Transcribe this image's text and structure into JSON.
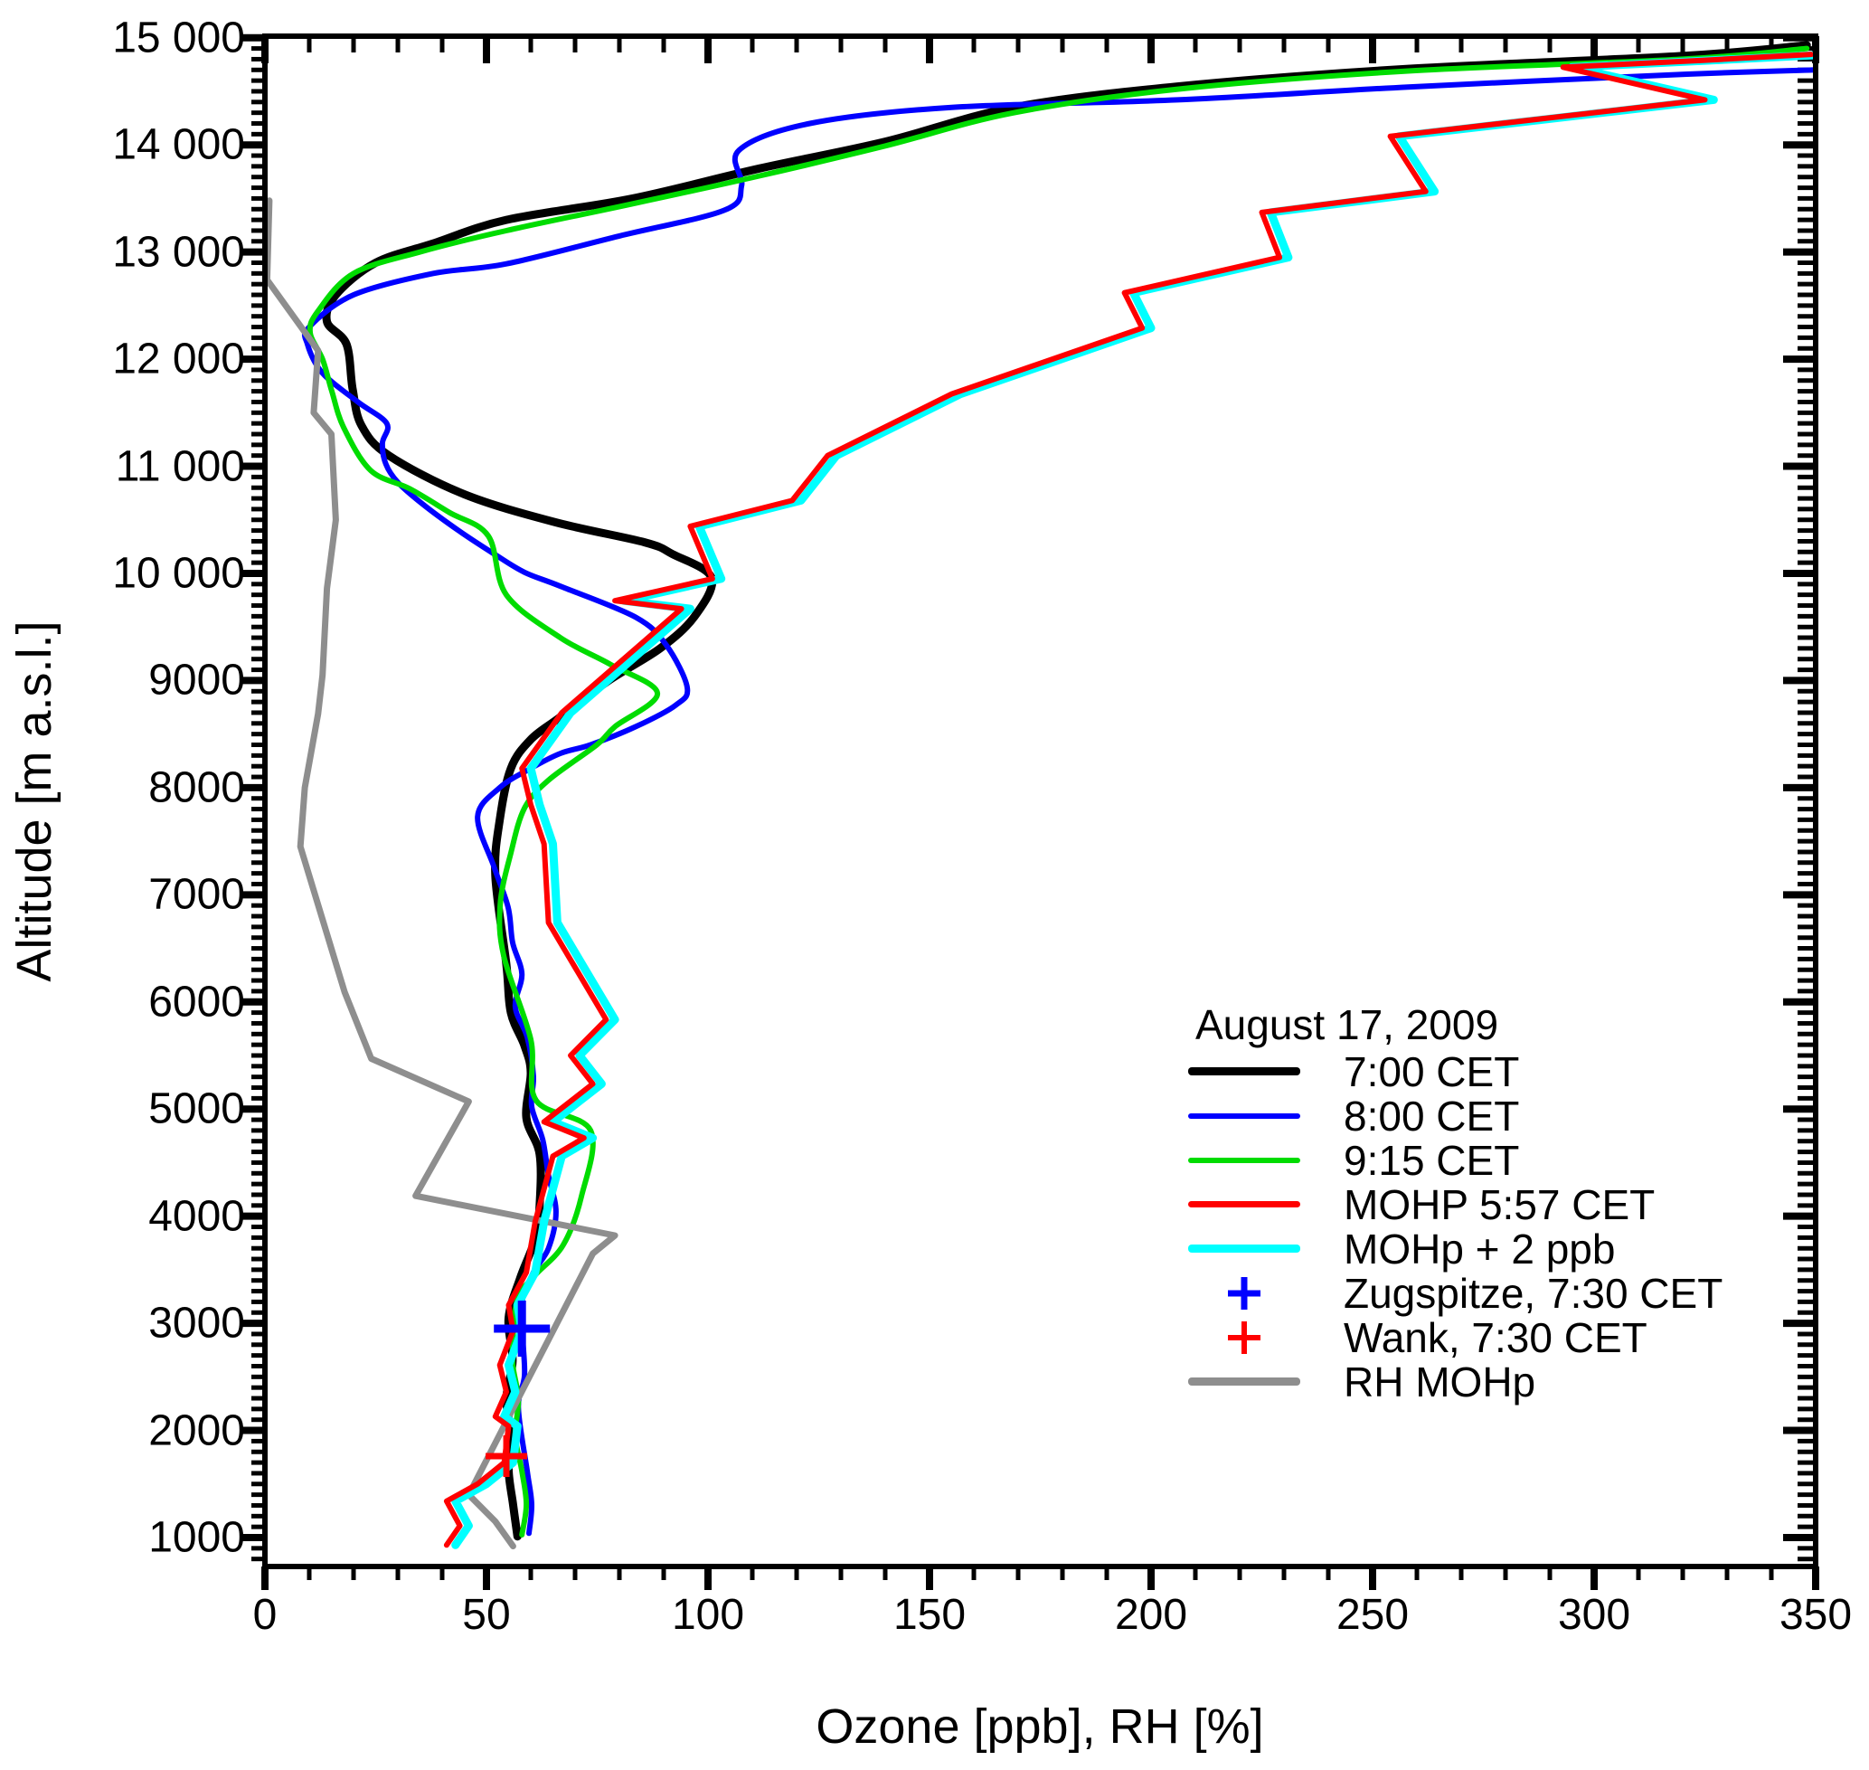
{
  "page": {
    "background": "#ffffff"
  },
  "axes": {
    "x_title": "Ozone [ppb], RH [%]",
    "y_title": "Altitude [m a.s.l.]",
    "x_ticks": [
      {
        "value": 0,
        "label": "0"
      },
      {
        "value": 50,
        "label": "50"
      },
      {
        "value": 100,
        "label": "100"
      },
      {
        "value": 150,
        "label": "150"
      },
      {
        "value": 200,
        "label": "200"
      },
      {
        "value": 250,
        "label": "250"
      },
      {
        "value": 300,
        "label": "300"
      },
      {
        "value": 350,
        "label": "350"
      }
    ],
    "y_ticks": [
      {
        "value": 1000,
        "label": "1000"
      },
      {
        "value": 2000,
        "label": "2000"
      },
      {
        "value": 3000,
        "label": "3000"
      },
      {
        "value": 4000,
        "label": "4000"
      },
      {
        "value": 5000,
        "label": "5000"
      },
      {
        "value": 6000,
        "label": "6000"
      },
      {
        "value": 7000,
        "label": "7000"
      },
      {
        "value": 8000,
        "label": "8000"
      },
      {
        "value": 9000,
        "label": "9000"
      },
      {
        "value": 10000,
        "label": "10 000"
      },
      {
        "value": 11000,
        "label": "11 000"
      },
      {
        "value": 12000,
        "label": "12 000"
      },
      {
        "value": 13000,
        "label": "13 000"
      },
      {
        "value": 14000,
        "label": "14 000"
      },
      {
        "value": 15000,
        "label": "15 000"
      }
    ]
  },
  "legend": {
    "title": "August 17, 2009",
    "items": [
      {
        "label": "7:00 CET",
        "type": "line",
        "color": "#000000",
        "thickness": 9
      },
      {
        "label": "8:00 CET",
        "type": "line",
        "color": "#0000ff",
        "thickness": 6
      },
      {
        "label": "9:15 CET",
        "type": "line",
        "color": "#00dc00",
        "thickness": 6
      },
      {
        "label": "MOHP 5:57 CET",
        "type": "line",
        "color": "#ff0000",
        "thickness": 7
      },
      {
        "label": "MOHp + 2 ppb",
        "type": "line",
        "color": "#00ffff",
        "thickness": 9
      },
      {
        "label": "Zugspitze, 7:30 CET",
        "type": "plus",
        "color": "#0000ff",
        "thickness": 7
      },
      {
        "label": "Wank, 7:30 CET",
        "type": "plus",
        "color": "#ff0000",
        "thickness": 6
      },
      {
        "label": "RH MOHp",
        "type": "line",
        "color": "#8e8e8e",
        "thickness": 9
      }
    ]
  },
  "chart_data": {
    "type": "line",
    "title": "August 17, 2009",
    "xlabel": "Ozone [ppb], RH [%]",
    "ylabel": "Altitude [m a.s.l.]",
    "xlim": [
      0,
      350
    ],
    "ylim": [
      730,
      15000
    ],
    "x_major_step": 50,
    "x_minor_step": 10,
    "y_major_step": 1000,
    "y_minor_step": 100,
    "grid": false,
    "legend_position": "inside-lower-right",
    "series": [
      {
        "name": "sonde-0700",
        "label": "7:00 CET",
        "color": "#000000",
        "width": 9,
        "smooth": true,
        "points": [
          [
            57,
            1010
          ],
          [
            56,
            1310
          ],
          [
            55,
            1630
          ],
          [
            55.5,
            1960
          ],
          [
            54.5,
            2300
          ],
          [
            55.9,
            2650
          ],
          [
            55,
            3050
          ],
          [
            57.6,
            3420
          ],
          [
            61,
            3790
          ],
          [
            62,
            4100
          ],
          [
            62,
            4580
          ],
          [
            59,
            4920
          ],
          [
            60,
            5340
          ],
          [
            58.6,
            5590
          ],
          [
            55.5,
            5900
          ],
          [
            54.5,
            6350
          ],
          [
            52,
            7180
          ],
          [
            53,
            7700
          ],
          [
            55.5,
            8180
          ],
          [
            60,
            8450
          ],
          [
            66.7,
            8660
          ],
          [
            77.6,
            9000
          ],
          [
            89.2,
            9300
          ],
          [
            97,
            9600
          ],
          [
            100.8,
            9960
          ],
          [
            92,
            10180
          ],
          [
            85.7,
            10290
          ],
          [
            65.3,
            10480
          ],
          [
            44.9,
            10740
          ],
          [
            28,
            11100
          ],
          [
            21.8,
            11380
          ],
          [
            19.8,
            11720
          ],
          [
            18.4,
            12140
          ],
          [
            14,
            12350
          ],
          [
            16,
            12600
          ],
          [
            25,
            12900
          ],
          [
            38,
            13080
          ],
          [
            54.5,
            13300
          ],
          [
            83,
            13500
          ],
          [
            111.6,
            13780
          ],
          [
            140,
            14030
          ],
          [
            169,
            14350
          ],
          [
            206,
            14545
          ],
          [
            258,
            14710
          ],
          [
            320,
            14830
          ],
          [
            348,
            14930
          ]
        ]
      },
      {
        "name": "sonde-0800",
        "label": "8:00 CET",
        "color": "#0000ff",
        "width": 6,
        "smooth": true,
        "points": [
          [
            59.6,
            1040
          ],
          [
            60.2,
            1310
          ],
          [
            59.2,
            1620
          ],
          [
            57.2,
            2210
          ],
          [
            58.6,
            2520
          ],
          [
            58,
            2950
          ],
          [
            58,
            3200
          ],
          [
            60.6,
            3475
          ],
          [
            64,
            3700
          ],
          [
            65.7,
            4040
          ],
          [
            64,
            4380
          ],
          [
            62.7,
            4715
          ],
          [
            60.2,
            5025
          ],
          [
            60.6,
            5310
          ],
          [
            59.2,
            5670
          ],
          [
            56.5,
            5955
          ],
          [
            58,
            6260
          ],
          [
            55.9,
            6555
          ],
          [
            54.9,
            6880
          ],
          [
            51.8,
            7250
          ],
          [
            48,
            7730
          ],
          [
            53,
            8000
          ],
          [
            60,
            8180
          ],
          [
            66.7,
            8320
          ],
          [
            73.5,
            8400
          ],
          [
            83.7,
            8570
          ],
          [
            92.7,
            8770
          ],
          [
            95.3,
            8935
          ],
          [
            90.6,
            9330
          ],
          [
            83.7,
            9590
          ],
          [
            66.7,
            9880
          ],
          [
            58.6,
            10010
          ],
          [
            51.8,
            10180
          ],
          [
            43.7,
            10400
          ],
          [
            35.5,
            10650
          ],
          [
            30,
            10850
          ],
          [
            27.3,
            11020
          ],
          [
            26.5,
            11215
          ],
          [
            27.5,
            11400
          ],
          [
            21,
            11600
          ],
          [
            13,
            11870
          ],
          [
            9.6,
            12140
          ],
          [
            10,
            12300
          ],
          [
            20,
            12600
          ],
          [
            38,
            12800
          ],
          [
            54.5,
            12890
          ],
          [
            80,
            13150
          ],
          [
            103.7,
            13390
          ],
          [
            107.6,
            13620
          ],
          [
            107,
            13950
          ],
          [
            123,
            14200
          ],
          [
            155,
            14350
          ],
          [
            206,
            14420
          ],
          [
            258,
            14540
          ],
          [
            321,
            14660
          ],
          [
            350,
            14700
          ]
        ]
      },
      {
        "name": "sonde-0915",
        "label": "9:15 CET",
        "color": "#00dc00",
        "width": 6,
        "smooth": true,
        "points": [
          [
            58,
            1025
          ],
          [
            59,
            1310
          ],
          [
            58,
            1620
          ],
          [
            56.5,
            1950
          ],
          [
            57.2,
            2290
          ],
          [
            55.9,
            2630
          ],
          [
            56.1,
            2940
          ],
          [
            57.2,
            3250
          ],
          [
            61,
            3450
          ],
          [
            67.3,
            3730
          ],
          [
            71.4,
            4180
          ],
          [
            73.5,
            4800
          ],
          [
            61.2,
            5080
          ],
          [
            60,
            5650
          ],
          [
            53.9,
            6430
          ],
          [
            53.1,
            6910
          ],
          [
            55.5,
            7390
          ],
          [
            58.6,
            7810
          ],
          [
            64,
            8070
          ],
          [
            74.9,
            8400
          ],
          [
            79,
            8570
          ],
          [
            88.6,
            8880
          ],
          [
            78,
            9150
          ],
          [
            66.7,
            9400
          ],
          [
            54.5,
            9800
          ],
          [
            50.4,
            10350
          ],
          [
            41.6,
            10570
          ],
          [
            32.7,
            10790
          ],
          [
            23.9,
            10960
          ],
          [
            17.8,
            11360
          ],
          [
            15.1,
            11700
          ],
          [
            13,
            12000
          ],
          [
            10.2,
            12250
          ],
          [
            12,
            12450
          ],
          [
            20,
            12800
          ],
          [
            35,
            13000
          ],
          [
            54.5,
            13200
          ],
          [
            83,
            13450
          ],
          [
            111.6,
            13710
          ],
          [
            140,
            13990
          ],
          [
            169,
            14300
          ],
          [
            206,
            14520
          ],
          [
            258,
            14690
          ],
          [
            320,
            14800
          ],
          [
            348,
            14900
          ]
        ]
      },
      {
        "name": "rh-mohp",
        "label": "RH MOHp",
        "color": "#8e8e8e",
        "width": 7,
        "smooth": false,
        "points": [
          [
            1,
            13480
          ],
          [
            0.5,
            12740
          ],
          [
            12,
            12080
          ],
          [
            11,
            11500
          ],
          [
            15,
            11300
          ],
          [
            16,
            10500
          ],
          [
            14,
            9860
          ],
          [
            13,
            9050
          ],
          [
            12,
            8690
          ],
          [
            9,
            8000
          ],
          [
            8,
            7450
          ],
          [
            18,
            6090
          ],
          [
            24,
            5470
          ],
          [
            46,
            5070
          ],
          [
            34,
            4190
          ],
          [
            79,
            3820
          ],
          [
            74,
            3650
          ],
          [
            46,
            1400
          ],
          [
            52,
            1150
          ],
          [
            56,
            920
          ]
        ]
      },
      {
        "name": "mohp-plus2",
        "label": "MOHp + 2 ppb",
        "color": "#00ffff",
        "width": 9,
        "smooth": false,
        "points": [
          [
            43,
            930
          ],
          [
            46,
            1110
          ],
          [
            43,
            1340
          ],
          [
            50,
            1500
          ],
          [
            56,
            1700
          ],
          [
            57,
            2040
          ],
          [
            54,
            2130
          ],
          [
            56.5,
            2360
          ],
          [
            55,
            2610
          ],
          [
            58,
            2930
          ],
          [
            57,
            3170
          ],
          [
            61,
            3475
          ],
          [
            63,
            3950
          ],
          [
            67,
            4560
          ],
          [
            74,
            4730
          ],
          [
            65,
            4880
          ],
          [
            76,
            5235
          ],
          [
            71,
            5500
          ],
          [
            79,
            5835
          ],
          [
            66,
            6740
          ],
          [
            65,
            7475
          ],
          [
            62,
            7840
          ],
          [
            60,
            8180
          ],
          [
            69,
            8700
          ],
          [
            96,
            9670
          ],
          [
            81,
            9745
          ],
          [
            103,
            9950
          ],
          [
            98,
            10440
          ],
          [
            121,
            10680
          ],
          [
            129,
            11100
          ],
          [
            157,
            11675
          ],
          [
            200,
            12290
          ],
          [
            196,
            12620
          ],
          [
            231,
            12950
          ],
          [
            227,
            13370
          ],
          [
            264,
            13565
          ],
          [
            256,
            14080
          ],
          [
            327,
            14420
          ],
          [
            295,
            14725
          ],
          [
            327,
            14790
          ],
          [
            351,
            14840
          ]
        ]
      },
      {
        "name": "mohp-0557",
        "label": "MOHP 5:57 CET",
        "color": "#ff0000",
        "width": 6,
        "smooth": false,
        "points": [
          [
            41,
            930
          ],
          [
            44,
            1110
          ],
          [
            41,
            1340
          ],
          [
            48,
            1500
          ],
          [
            54,
            1700
          ],
          [
            55,
            2040
          ],
          [
            52,
            2130
          ],
          [
            54.5,
            2360
          ],
          [
            53,
            2610
          ],
          [
            56,
            2930
          ],
          [
            55,
            3170
          ],
          [
            59,
            3475
          ],
          [
            61,
            3950
          ],
          [
            65,
            4560
          ],
          [
            72,
            4730
          ],
          [
            63,
            4880
          ],
          [
            74,
            5235
          ],
          [
            69,
            5500
          ],
          [
            77,
            5835
          ],
          [
            64,
            6740
          ],
          [
            63,
            7475
          ],
          [
            60,
            7840
          ],
          [
            58,
            8180
          ],
          [
            67,
            8700
          ],
          [
            94,
            9670
          ],
          [
            79,
            9745
          ],
          [
            101,
            9950
          ],
          [
            96,
            10440
          ],
          [
            119,
            10680
          ],
          [
            127,
            11100
          ],
          [
            155,
            11675
          ],
          [
            198,
            12290
          ],
          [
            194,
            12620
          ],
          [
            229,
            12950
          ],
          [
            225,
            13370
          ],
          [
            262,
            13565
          ],
          [
            254,
            14080
          ],
          [
            325,
            14420
          ],
          [
            293,
            14725
          ],
          [
            325,
            14790
          ],
          [
            349,
            14845
          ]
        ]
      }
    ],
    "markers": [
      {
        "name": "zugspitze-marker",
        "label": "Zugspitze, 7:30 CET",
        "color": "#0000ff",
        "ozone_ppb": 58,
        "altitude_m": 2950,
        "size": 62,
        "stroke": 9
      },
      {
        "name": "wank-marker",
        "label": "Wank, 7:30 CET",
        "color": "#ff0000",
        "ozone_ppb": 54.5,
        "altitude_m": 1760,
        "size": 46,
        "stroke": 7
      }
    ]
  }
}
